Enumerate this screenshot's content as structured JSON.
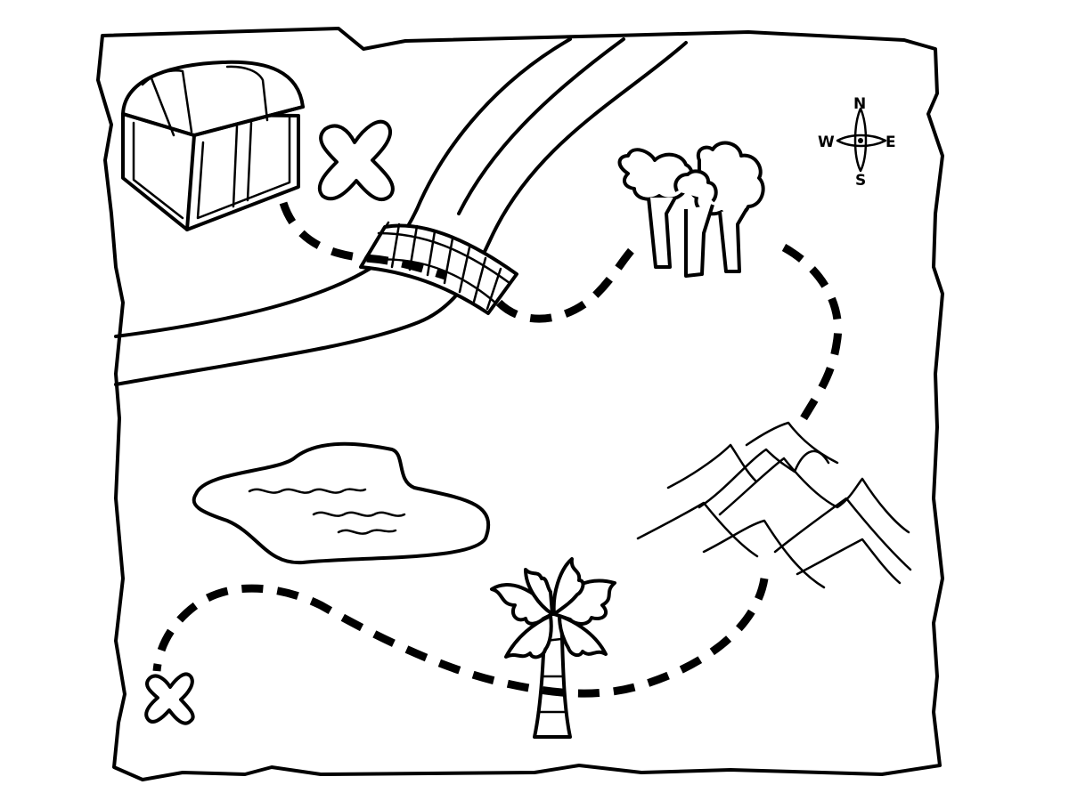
{
  "map": {
    "background_color": "#ffffff",
    "ink_color": "#000000",
    "compass": {
      "north": "N",
      "south": "S",
      "east": "E",
      "west": "W"
    },
    "features": [
      "parchment-border",
      "treasure-chest-icon",
      "x-mark-icon",
      "river",
      "wooden-bridge",
      "forest-trees-icon",
      "lake",
      "mountains",
      "palm-tree-icon",
      "dashed-trail"
    ]
  }
}
